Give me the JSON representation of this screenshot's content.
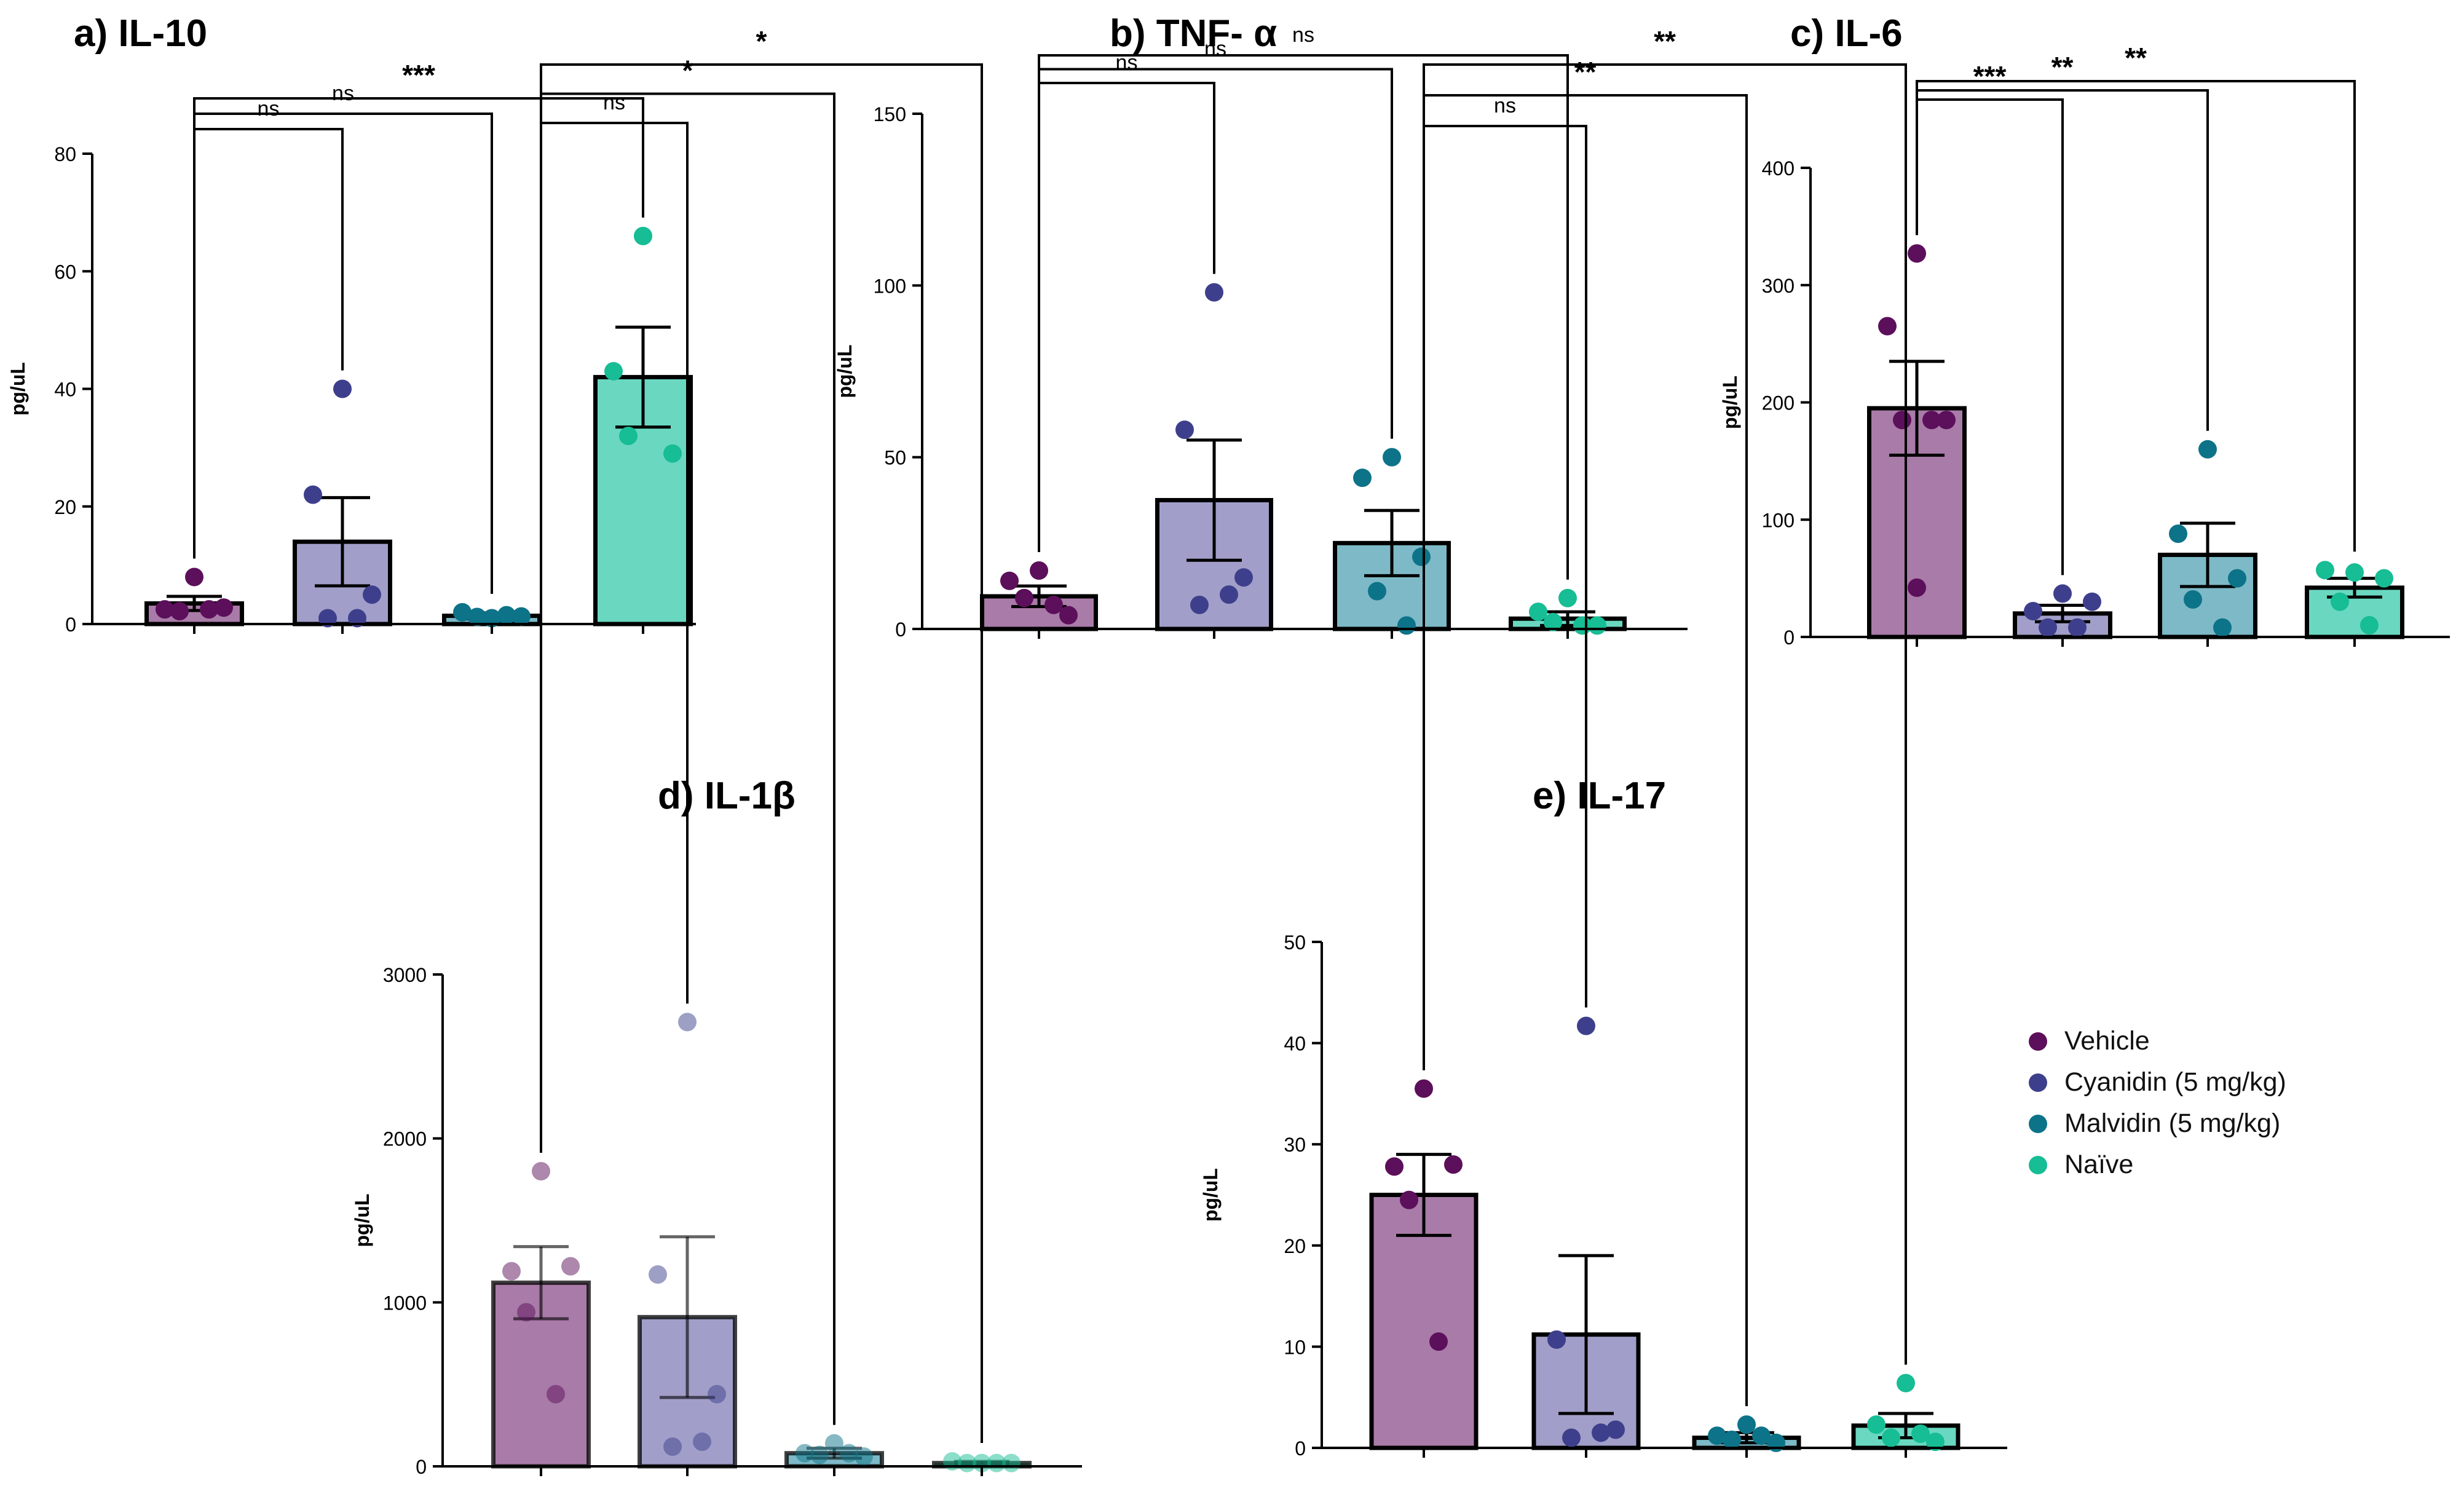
{
  "groups": [
    "Vehicle",
    "Cyanidin (5 mg/kg)",
    "Malvidin (5 mg/kg)",
    "Naïve"
  ],
  "colors": {
    "dot": [
      "#5c0f5a",
      "#3e3f8c",
      "#0d7388",
      "#17bd94"
    ],
    "bar": [
      "#a97ba8",
      "#a19fc9",
      "#7db9c7",
      "#6ad8c1"
    ],
    "axis": "#000000"
  },
  "legend_position": "right-bottom",
  "chart_data": [
    {
      "type": "bar",
      "title": "a)  IL-10",
      "ylabel": "pg/uL",
      "ylim": [
        0,
        80
      ],
      "yticks": [
        0,
        20,
        40,
        60,
        80
      ],
      "categories": [
        "Vehicle",
        "Cyanidin (5 mg/kg)",
        "Malvidin (5 mg/kg)",
        "Naïve"
      ],
      "means": [
        3.5,
        14,
        1.4,
        42
      ],
      "sem": [
        1.2,
        7.5,
        0.5,
        8.5
      ],
      "points": [
        [
          8,
          2.5,
          2.8,
          2.2,
          2.5
        ],
        [
          40,
          22,
          5,
          1,
          1
        ],
        [
          1,
          2,
          1.3,
          1.2,
          1.5
        ],
        [
          66,
          43,
          29,
          32
        ]
      ],
      "comparisons": [
        {
          "from": 0,
          "to": 1,
          "label": "ns"
        },
        {
          "from": 0,
          "to": 2,
          "label": "ns"
        },
        {
          "from": 0,
          "to": 3,
          "label": "***"
        }
      ]
    },
    {
      "type": "bar",
      "title": "b) TNF- α",
      "ylabel": "pg/uL",
      "ylim": [
        0,
        150
      ],
      "yticks": [
        0,
        50,
        100,
        150
      ],
      "categories": [
        "Vehicle",
        "Cyanidin (5 mg/kg)",
        "Malvidin (5 mg/kg)",
        "Naïve"
      ],
      "means": [
        9.5,
        37.5,
        25,
        3
      ],
      "sem": [
        3,
        17.5,
        9.5,
        2
      ],
      "points": [
        [
          17,
          14,
          4,
          9,
          7
        ],
        [
          98,
          58,
          15,
          7,
          10
        ],
        [
          50,
          44,
          21,
          11,
          1
        ],
        [
          9,
          5,
          1,
          2,
          1
        ]
      ],
      "comparisons": [
        {
          "from": 0,
          "to": 1,
          "label": "ns"
        },
        {
          "from": 0,
          "to": 2,
          "label": "ns"
        },
        {
          "from": 0,
          "to": 3,
          "label": "ns"
        }
      ]
    },
    {
      "type": "bar",
      "title": "c) IL-6",
      "ylabel": "pg/uL",
      "ylim": [
        0,
        400
      ],
      "yticks": [
        0,
        100,
        200,
        300,
        400
      ],
      "categories": [
        "Vehicle",
        "Cyanidin (5 mg/kg)",
        "Malvidin (5 mg/kg)",
        "Naïve"
      ],
      "means": [
        195,
        20,
        70,
        42
      ],
      "sem": [
        40,
        7,
        27,
        8
      ],
      "points": [
        [
          327,
          265,
          185,
          185,
          185,
          42
        ],
        [
          37,
          22,
          30,
          8,
          8
        ],
        [
          160,
          88,
          50,
          32,
          8
        ],
        [
          55,
          57,
          50,
          30,
          10
        ]
      ],
      "comparisons": [
        {
          "from": 0,
          "to": 1,
          "label": "***"
        },
        {
          "from": 0,
          "to": 2,
          "label": "**"
        },
        {
          "from": 0,
          "to": 3,
          "label": "**"
        }
      ]
    },
    {
      "type": "bar",
      "title": "d) IL-1β",
      "ylabel": "pg/uL",
      "ylim": [
        0,
        3000
      ],
      "yticks": [
        0,
        1000,
        2000,
        3000
      ],
      "faded_points": true,
      "categories": [
        "Vehicle",
        "Cyanidin (5 mg/kg)",
        "Malvidin (5 mg/kg)",
        "Naïve"
      ],
      "means": [
        1120,
        910,
        80,
        20
      ],
      "sem": [
        220,
        490,
        30,
        10
      ],
      "points": [
        [
          1800,
          1190,
          1220,
          940,
          440
        ],
        [
          2710,
          1170,
          440,
          120,
          150
        ],
        [
          140,
          80,
          60,
          70,
          80
        ],
        [
          20,
          30,
          20,
          20,
          20
        ]
      ],
      "comparisons": [
        {
          "from": 0,
          "to": 1,
          "label": "ns"
        },
        {
          "from": 0,
          "to": 2,
          "label": "*"
        },
        {
          "from": 0,
          "to": 3,
          "label": "*"
        }
      ]
    },
    {
      "type": "bar",
      "title": "e) IL-17",
      "ylabel": "pg/uL",
      "ylim": [
        0,
        50
      ],
      "yticks": [
        0,
        10,
        20,
        30,
        40,
        50
      ],
      "categories": [
        "Vehicle",
        "Cyanidin (5 mg/kg)",
        "Malvidin (5 mg/kg)",
        "Naïve"
      ],
      "means": [
        25,
        11.2,
        1,
        2.2
      ],
      "sem": [
        4,
        7.8,
        0.5,
        1.2
      ],
      "points": [
        [
          35.5,
          27.8,
          28,
          24.5,
          10.5
        ],
        [
          41.7,
          10.7,
          1.8,
          1,
          1.5
        ],
        [
          2.3,
          1.2,
          0.5,
          0.8,
          1.2
        ],
        [
          6.4,
          2.3,
          0.6,
          1,
          1.4
        ]
      ],
      "comparisons": [
        {
          "from": 0,
          "to": 1,
          "label": "ns"
        },
        {
          "from": 0,
          "to": 2,
          "label": "**"
        },
        {
          "from": 0,
          "to": 3,
          "label": "**"
        }
      ]
    }
  ]
}
